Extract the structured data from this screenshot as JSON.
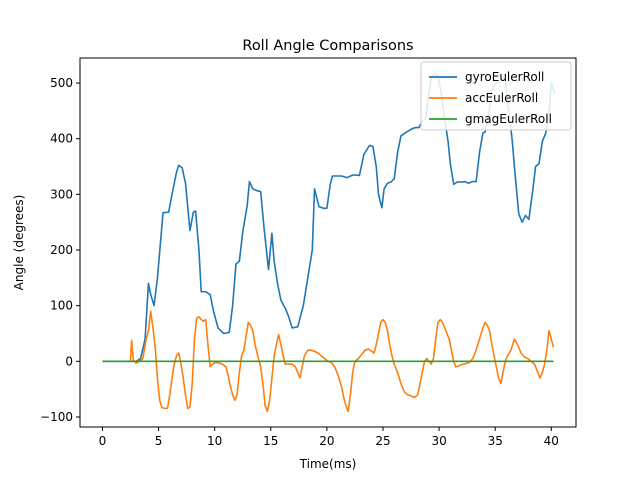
{
  "chart_data": {
    "type": "line",
    "title": "Roll Angle Comparisons",
    "xlabel": "Time(ms)",
    "ylabel": "Angle (degrees)",
    "xlim": [
      -2.0,
      42.2
    ],
    "ylim": [
      -118,
      545
    ],
    "xticks": [
      0,
      5,
      10,
      15,
      20,
      25,
      30,
      35,
      40
    ],
    "yticks": [
      -100,
      0,
      100,
      200,
      300,
      400,
      500
    ],
    "grid": false,
    "legend_position": "top-right",
    "series": [
      {
        "name": "gyroEulerRoll",
        "color": "#1f77b4",
        "points": [
          [
            0,
            0
          ],
          [
            2.5,
            0
          ],
          [
            3.0,
            0
          ],
          [
            3.4,
            5
          ],
          [
            3.8,
            40
          ],
          [
            4.1,
            140
          ],
          [
            4.3,
            120
          ],
          [
            4.6,
            100
          ],
          [
            4.9,
            150
          ],
          [
            5.2,
            220
          ],
          [
            5.4,
            267
          ],
          [
            5.9,
            268
          ],
          [
            6.2,
            300
          ],
          [
            6.6,
            340
          ],
          [
            6.8,
            352
          ],
          [
            7.1,
            348
          ],
          [
            7.4,
            320
          ],
          [
            7.8,
            235
          ],
          [
            8.1,
            268
          ],
          [
            8.3,
            270
          ],
          [
            8.6,
            200
          ],
          [
            8.8,
            125
          ],
          [
            9.2,
            125
          ],
          [
            9.6,
            120
          ],
          [
            9.9,
            90
          ],
          [
            10.3,
            60
          ],
          [
            10.8,
            50
          ],
          [
            11.3,
            52
          ],
          [
            11.6,
            100
          ],
          [
            11.9,
            175
          ],
          [
            12.2,
            180
          ],
          [
            12.5,
            232
          ],
          [
            12.9,
            280
          ],
          [
            13.1,
            323
          ],
          [
            13.4,
            310
          ],
          [
            13.7,
            307
          ],
          [
            14.1,
            305
          ],
          [
            14.4,
            240
          ],
          [
            14.8,
            165
          ],
          [
            15.1,
            230
          ],
          [
            15.3,
            180
          ],
          [
            15.6,
            140
          ],
          [
            15.9,
            110
          ],
          [
            16.3,
            95
          ],
          [
            16.6,
            80
          ],
          [
            16.9,
            60
          ],
          [
            17.4,
            62
          ],
          [
            17.9,
            100
          ],
          [
            18.3,
            150
          ],
          [
            18.7,
            200
          ],
          [
            18.9,
            310
          ],
          [
            19.3,
            278
          ],
          [
            19.7,
            275
          ],
          [
            20.0,
            275
          ],
          [
            20.3,
            318
          ],
          [
            20.5,
            333
          ],
          [
            20.8,
            333
          ],
          [
            21.3,
            333
          ],
          [
            21.8,
            330
          ],
          [
            22.1,
            333
          ],
          [
            22.4,
            335
          ],
          [
            22.9,
            334
          ],
          [
            23.3,
            372
          ],
          [
            23.8,
            388
          ],
          [
            24.1,
            386
          ],
          [
            24.4,
            350
          ],
          [
            24.6,
            300
          ],
          [
            24.9,
            276
          ],
          [
            25.1,
            310
          ],
          [
            25.4,
            320
          ],
          [
            25.7,
            322
          ],
          [
            26.0,
            328
          ],
          [
            26.3,
            375
          ],
          [
            26.6,
            405
          ],
          [
            27.1,
            412
          ],
          [
            27.6,
            418
          ],
          [
            27.9,
            420
          ],
          [
            28.2,
            420
          ],
          [
            28.5,
            432
          ],
          [
            28.8,
            435
          ],
          [
            29.0,
            470
          ],
          [
            29.3,
            510
          ],
          [
            29.6,
            517
          ],
          [
            29.9,
            513
          ],
          [
            30.2,
            480
          ],
          [
            30.5,
            435
          ],
          [
            30.8,
            395
          ],
          [
            31.0,
            355
          ],
          [
            31.3,
            318
          ],
          [
            31.6,
            322
          ],
          [
            32.0,
            322
          ],
          [
            32.3,
            323
          ],
          [
            32.6,
            320
          ],
          [
            33.0,
            323
          ],
          [
            33.3,
            323
          ],
          [
            33.6,
            375
          ],
          [
            33.9,
            410
          ],
          [
            34.1,
            412
          ],
          [
            34.4,
            440
          ],
          [
            34.7,
            486
          ],
          [
            35.0,
            500
          ],
          [
            35.3,
            500
          ],
          [
            35.6,
            510
          ],
          [
            35.9,
            505
          ],
          [
            36.2,
            452
          ],
          [
            36.5,
            400
          ],
          [
            36.8,
            330
          ],
          [
            37.1,
            265
          ],
          [
            37.4,
            250
          ],
          [
            37.7,
            262
          ],
          [
            38.0,
            255
          ],
          [
            38.3,
            300
          ],
          [
            38.6,
            350
          ],
          [
            38.9,
            355
          ],
          [
            39.2,
            395
          ],
          [
            39.5,
            410
          ],
          [
            39.8,
            445
          ],
          [
            40.0,
            500
          ],
          [
            40.3,
            480
          ]
        ]
      },
      {
        "name": "accEulerRoll",
        "color": "#ff7f0e",
        "points": [
          [
            2.5,
            0
          ],
          [
            2.6,
            38
          ],
          [
            2.75,
            2
          ],
          [
            3.0,
            -3
          ],
          [
            3.3,
            0
          ],
          [
            3.6,
            5
          ],
          [
            3.9,
            40
          ],
          [
            4.1,
            55
          ],
          [
            4.3,
            90
          ],
          [
            4.5,
            60
          ],
          [
            4.7,
            25
          ],
          [
            4.9,
            -30
          ],
          [
            5.1,
            -70
          ],
          [
            5.3,
            -83
          ],
          [
            5.6,
            -85
          ],
          [
            5.8,
            -84
          ],
          [
            6.0,
            -60
          ],
          [
            6.2,
            -30
          ],
          [
            6.4,
            -5
          ],
          [
            6.6,
            10
          ],
          [
            6.8,
            15
          ],
          [
            7.0,
            -5
          ],
          [
            7.2,
            -30
          ],
          [
            7.4,
            -60
          ],
          [
            7.6,
            -85
          ],
          [
            7.8,
            -82
          ],
          [
            8.0,
            -40
          ],
          [
            8.2,
            40
          ],
          [
            8.4,
            78
          ],
          [
            8.6,
            80
          ],
          [
            8.8,
            75
          ],
          [
            9.0,
            72
          ],
          [
            9.2,
            75
          ],
          [
            9.4,
            30
          ],
          [
            9.6,
            -10
          ],
          [
            9.8,
            -5
          ],
          [
            10.1,
            -2
          ],
          [
            10.4,
            -3
          ],
          [
            10.7,
            -5
          ],
          [
            11.0,
            -10
          ],
          [
            11.2,
            -25
          ],
          [
            11.4,
            -45
          ],
          [
            11.6,
            -60
          ],
          [
            11.8,
            -70
          ],
          [
            12.0,
            -60
          ],
          [
            12.2,
            -20
          ],
          [
            12.4,
            10
          ],
          [
            12.6,
            20
          ],
          [
            12.8,
            45
          ],
          [
            13.0,
            70
          ],
          [
            13.2,
            65
          ],
          [
            13.4,
            55
          ],
          [
            13.6,
            30
          ],
          [
            13.9,
            5
          ],
          [
            14.1,
            -10
          ],
          [
            14.3,
            -40
          ],
          [
            14.5,
            -80
          ],
          [
            14.7,
            -90
          ],
          [
            14.9,
            -70
          ],
          [
            15.1,
            -30
          ],
          [
            15.3,
            10
          ],
          [
            15.5,
            30
          ],
          [
            15.7,
            48
          ],
          [
            15.9,
            30
          ],
          [
            16.1,
            10
          ],
          [
            16.3,
            -5
          ],
          [
            16.6,
            -5
          ],
          [
            16.9,
            -5
          ],
          [
            17.2,
            -10
          ],
          [
            17.4,
            -20
          ],
          [
            17.6,
            -30
          ],
          [
            17.8,
            -10
          ],
          [
            18.0,
            10
          ],
          [
            18.3,
            20
          ],
          [
            18.6,
            20
          ],
          [
            18.9,
            18
          ],
          [
            19.2,
            15
          ],
          [
            19.5,
            10
          ],
          [
            19.8,
            5
          ],
          [
            20.1,
            0
          ],
          [
            20.4,
            -2
          ],
          [
            20.7,
            -10
          ],
          [
            21.0,
            -25
          ],
          [
            21.3,
            -45
          ],
          [
            21.5,
            -65
          ],
          [
            21.7,
            -80
          ],
          [
            21.9,
            -90
          ],
          [
            22.1,
            -60
          ],
          [
            22.3,
            -20
          ],
          [
            22.5,
            0
          ],
          [
            22.8,
            5
          ],
          [
            23.1,
            12
          ],
          [
            23.4,
            20
          ],
          [
            23.7,
            22
          ],
          [
            24.0,
            18
          ],
          [
            24.2,
            15
          ],
          [
            24.4,
            30
          ],
          [
            24.6,
            50
          ],
          [
            24.8,
            70
          ],
          [
            25.0,
            75
          ],
          [
            25.2,
            70
          ],
          [
            25.4,
            55
          ],
          [
            25.6,
            30
          ],
          [
            25.8,
            10
          ],
          [
            26.0,
            -5
          ],
          [
            26.3,
            -20
          ],
          [
            26.6,
            -40
          ],
          [
            26.9,
            -55
          ],
          [
            27.2,
            -60
          ],
          [
            27.5,
            -62
          ],
          [
            27.8,
            -65
          ],
          [
            28.1,
            -60
          ],
          [
            28.3,
            -40
          ],
          [
            28.5,
            -20
          ],
          [
            28.7,
            0
          ],
          [
            28.9,
            5
          ],
          [
            29.1,
            0
          ],
          [
            29.3,
            -5
          ],
          [
            29.5,
            5
          ],
          [
            29.7,
            40
          ],
          [
            29.9,
            70
          ],
          [
            30.1,
            75
          ],
          [
            30.3,
            70
          ],
          [
            30.5,
            60
          ],
          [
            30.7,
            50
          ],
          [
            30.9,
            40
          ],
          [
            31.1,
            20
          ],
          [
            31.3,
            0
          ],
          [
            31.5,
            -10
          ],
          [
            31.8,
            -8
          ],
          [
            32.1,
            -5
          ],
          [
            32.4,
            -4
          ],
          [
            32.7,
            -2
          ],
          [
            33.0,
            5
          ],
          [
            33.3,
            20
          ],
          [
            33.6,
            40
          ],
          [
            33.9,
            60
          ],
          [
            34.1,
            70
          ],
          [
            34.3,
            65
          ],
          [
            34.5,
            55
          ],
          [
            34.7,
            30
          ],
          [
            34.9,
            10
          ],
          [
            35.1,
            -10
          ],
          [
            35.3,
            -30
          ],
          [
            35.5,
            -40
          ],
          [
            35.7,
            -20
          ],
          [
            35.9,
            0
          ],
          [
            36.1,
            10
          ],
          [
            36.4,
            20
          ],
          [
            36.7,
            40
          ],
          [
            37.0,
            30
          ],
          [
            37.3,
            15
          ],
          [
            37.6,
            8
          ],
          [
            37.9,
            5
          ],
          [
            38.2,
            0
          ],
          [
            38.5,
            -5
          ],
          [
            38.8,
            -20
          ],
          [
            39.0,
            -30
          ],
          [
            39.2,
            -20
          ],
          [
            39.4,
            -5
          ],
          [
            39.6,
            20
          ],
          [
            39.8,
            55
          ],
          [
            40.0,
            40
          ],
          [
            40.2,
            25
          ]
        ]
      },
      {
        "name": "gmagEulerRoll",
        "color": "#2ca02c",
        "points": [
          [
            0,
            0
          ],
          [
            40.2,
            0
          ]
        ]
      }
    ]
  }
}
